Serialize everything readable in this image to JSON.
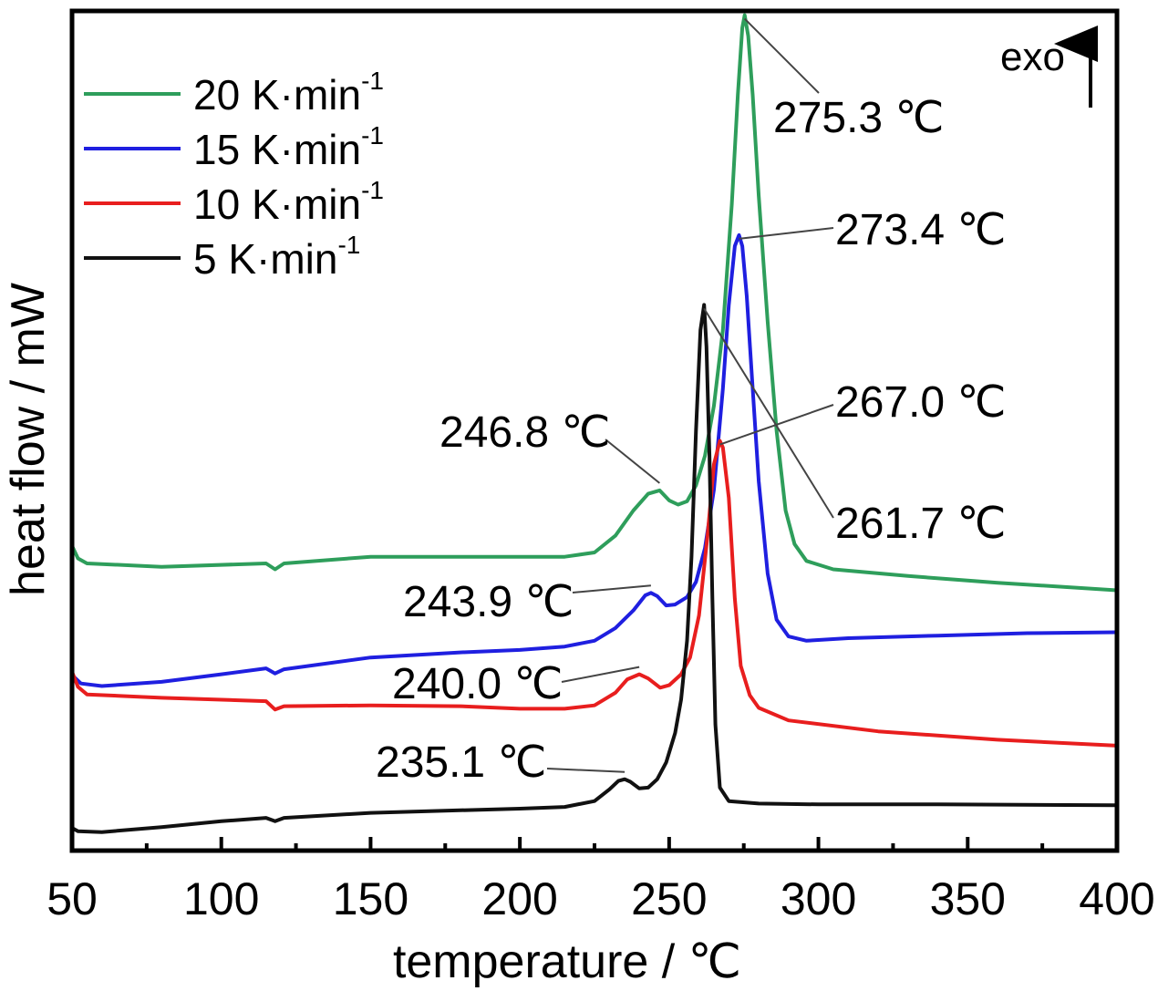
{
  "chart_data": {
    "type": "line",
    "title": "",
    "xlabel": "temperature / ℃",
    "ylabel": "heat flow / mW",
    "xlim": [
      50,
      400
    ],
    "ylim": [
      0,
      100
    ],
    "x_ticks": [
      50,
      100,
      150,
      200,
      250,
      300,
      350,
      400
    ],
    "x_tick_labels": [
      "50",
      "100",
      "150",
      "200",
      "250",
      "300",
      "350",
      "400"
    ],
    "y_ticks_shown": false,
    "grid": false,
    "legend": {
      "placement": "top-left"
    },
    "direction_annotation": "exo",
    "series": [
      {
        "name": "20 K·min",
        "name_sup": "-1",
        "color": "#2e9e5b",
        "points": [
          [
            50,
            36.3
          ],
          [
            52,
            34.8
          ],
          [
            55,
            34.2
          ],
          [
            80,
            33.8
          ],
          [
            115,
            34.2
          ],
          [
            118,
            33.5
          ],
          [
            121,
            34.2
          ],
          [
            150,
            35.0
          ],
          [
            180,
            35.0
          ],
          [
            200,
            35.0
          ],
          [
            215,
            35.0
          ],
          [
            225,
            35.5
          ],
          [
            232,
            37.5
          ],
          [
            238,
            40.5
          ],
          [
            243,
            42.5
          ],
          [
            246.8,
            42.9
          ],
          [
            250,
            41.7
          ],
          [
            253,
            41.2
          ],
          [
            256,
            41.6
          ],
          [
            259,
            43.5
          ],
          [
            262,
            47.0
          ],
          [
            265,
            53.0
          ],
          [
            268,
            62.0
          ],
          [
            271,
            77.0
          ],
          [
            273,
            90.0
          ],
          [
            274.5,
            98.0
          ],
          [
            275.3,
            99.5
          ],
          [
            276.5,
            97.0
          ],
          [
            278,
            90.0
          ],
          [
            280,
            78.0
          ],
          [
            283,
            63.0
          ],
          [
            286,
            50.0
          ],
          [
            289,
            40.5
          ],
          [
            292,
            36.5
          ],
          [
            296,
            34.5
          ],
          [
            305,
            33.5
          ],
          [
            330,
            32.7
          ],
          [
            360,
            31.9
          ],
          [
            400,
            31.0
          ]
        ]
      },
      {
        "name": "15 K·min",
        "name_sup": "-1",
        "color": "#1f1fe0",
        "points": [
          [
            50,
            20.9
          ],
          [
            53,
            19.9
          ],
          [
            60,
            19.6
          ],
          [
            80,
            20.1
          ],
          [
            100,
            21.0
          ],
          [
            115,
            21.7
          ],
          [
            118,
            21.1
          ],
          [
            121,
            21.6
          ],
          [
            150,
            23.0
          ],
          [
            180,
            23.6
          ],
          [
            200,
            23.9
          ],
          [
            215,
            24.3
          ],
          [
            225,
            25.0
          ],
          [
            232,
            26.5
          ],
          [
            238,
            28.6
          ],
          [
            242,
            30.4
          ],
          [
            243.9,
            30.7
          ],
          [
            246,
            30.3
          ],
          [
            249,
            29.2
          ],
          [
            252,
            29.3
          ],
          [
            256,
            30.2
          ],
          [
            259,
            32.0
          ],
          [
            262,
            36.0
          ],
          [
            265,
            43.0
          ],
          [
            268,
            55.0
          ],
          [
            270,
            65.0
          ],
          [
            272,
            72.0
          ],
          [
            273.4,
            73.3
          ],
          [
            274.5,
            72.0
          ],
          [
            276,
            66.0
          ],
          [
            278,
            55.0
          ],
          [
            280,
            44.0
          ],
          [
            283,
            33.0
          ],
          [
            286,
            27.5
          ],
          [
            290,
            25.5
          ],
          [
            296,
            25.0
          ],
          [
            310,
            25.3
          ],
          [
            340,
            25.6
          ],
          [
            370,
            25.9
          ],
          [
            400,
            26.0
          ]
        ]
      },
      {
        "name": "10 K·min",
        "name_sup": "-1",
        "color": "#e81e1e",
        "points": [
          [
            50,
            21.3
          ],
          [
            52,
            19.5
          ],
          [
            55,
            18.6
          ],
          [
            80,
            18.2
          ],
          [
            115,
            17.8
          ],
          [
            118,
            16.8
          ],
          [
            121,
            17.2
          ],
          [
            150,
            17.3
          ],
          [
            180,
            17.2
          ],
          [
            200,
            16.9
          ],
          [
            215,
            16.9
          ],
          [
            225,
            17.3
          ],
          [
            232,
            18.8
          ],
          [
            236,
            20.4
          ],
          [
            240,
            21.0
          ],
          [
            243,
            20.5
          ],
          [
            247,
            19.4
          ],
          [
            250,
            19.7
          ],
          [
            254,
            21.0
          ],
          [
            257,
            23.0
          ],
          [
            260,
            28.0
          ],
          [
            263,
            38.0
          ],
          [
            265,
            46.0
          ],
          [
            267,
            48.8
          ],
          [
            268,
            48.0
          ],
          [
            270,
            42.0
          ],
          [
            272,
            30.0
          ],
          [
            274,
            22.0
          ],
          [
            277,
            18.5
          ],
          [
            280,
            17.0
          ],
          [
            290,
            15.5
          ],
          [
            320,
            14.2
          ],
          [
            360,
            13.2
          ],
          [
            400,
            12.5
          ]
        ]
      },
      {
        "name": "5 K·min",
        "name_sup": "-1",
        "color": "#111111",
        "points": [
          [
            50,
            2.7
          ],
          [
            52,
            2.3
          ],
          [
            60,
            2.2
          ],
          [
            80,
            2.8
          ],
          [
            100,
            3.5
          ],
          [
            115,
            3.9
          ],
          [
            118,
            3.5
          ],
          [
            121,
            3.9
          ],
          [
            150,
            4.5
          ],
          [
            180,
            4.8
          ],
          [
            200,
            5.0
          ],
          [
            215,
            5.2
          ],
          [
            225,
            5.9
          ],
          [
            230,
            7.3
          ],
          [
            233,
            8.3
          ],
          [
            235.1,
            8.5
          ],
          [
            237,
            8.2
          ],
          [
            240,
            7.4
          ],
          [
            243,
            7.5
          ],
          [
            246,
            8.5
          ],
          [
            249,
            10.5
          ],
          [
            252,
            14.0
          ],
          [
            254,
            18.0
          ],
          [
            256,
            25.0
          ],
          [
            257.5,
            35.0
          ],
          [
            259,
            50.0
          ],
          [
            260.5,
            62.0
          ],
          [
            261.7,
            65.0
          ],
          [
            262.5,
            60.0
          ],
          [
            263.5,
            47.0
          ],
          [
            264.5,
            30.0
          ],
          [
            265.5,
            15.0
          ],
          [
            267,
            7.5
          ],
          [
            270,
            5.9
          ],
          [
            280,
            5.6
          ],
          [
            300,
            5.5
          ],
          [
            340,
            5.5
          ],
          [
            400,
            5.4
          ]
        ]
      }
    ],
    "annotations": [
      {
        "text": "275.3 ℃",
        "x": 275.3
      },
      {
        "text": "273.4 ℃",
        "x": 273.4
      },
      {
        "text": "267.0 ℃",
        "x": 267.0
      },
      {
        "text": "261.7 ℃",
        "x": 261.7
      },
      {
        "text": "246.8 ℃",
        "x": 246.8
      },
      {
        "text": "243.9 ℃",
        "x": 243.9
      },
      {
        "text": "240.0 ℃",
        "x": 240.0
      },
      {
        "text": "235.1 ℃",
        "x": 235.1
      }
    ]
  }
}
